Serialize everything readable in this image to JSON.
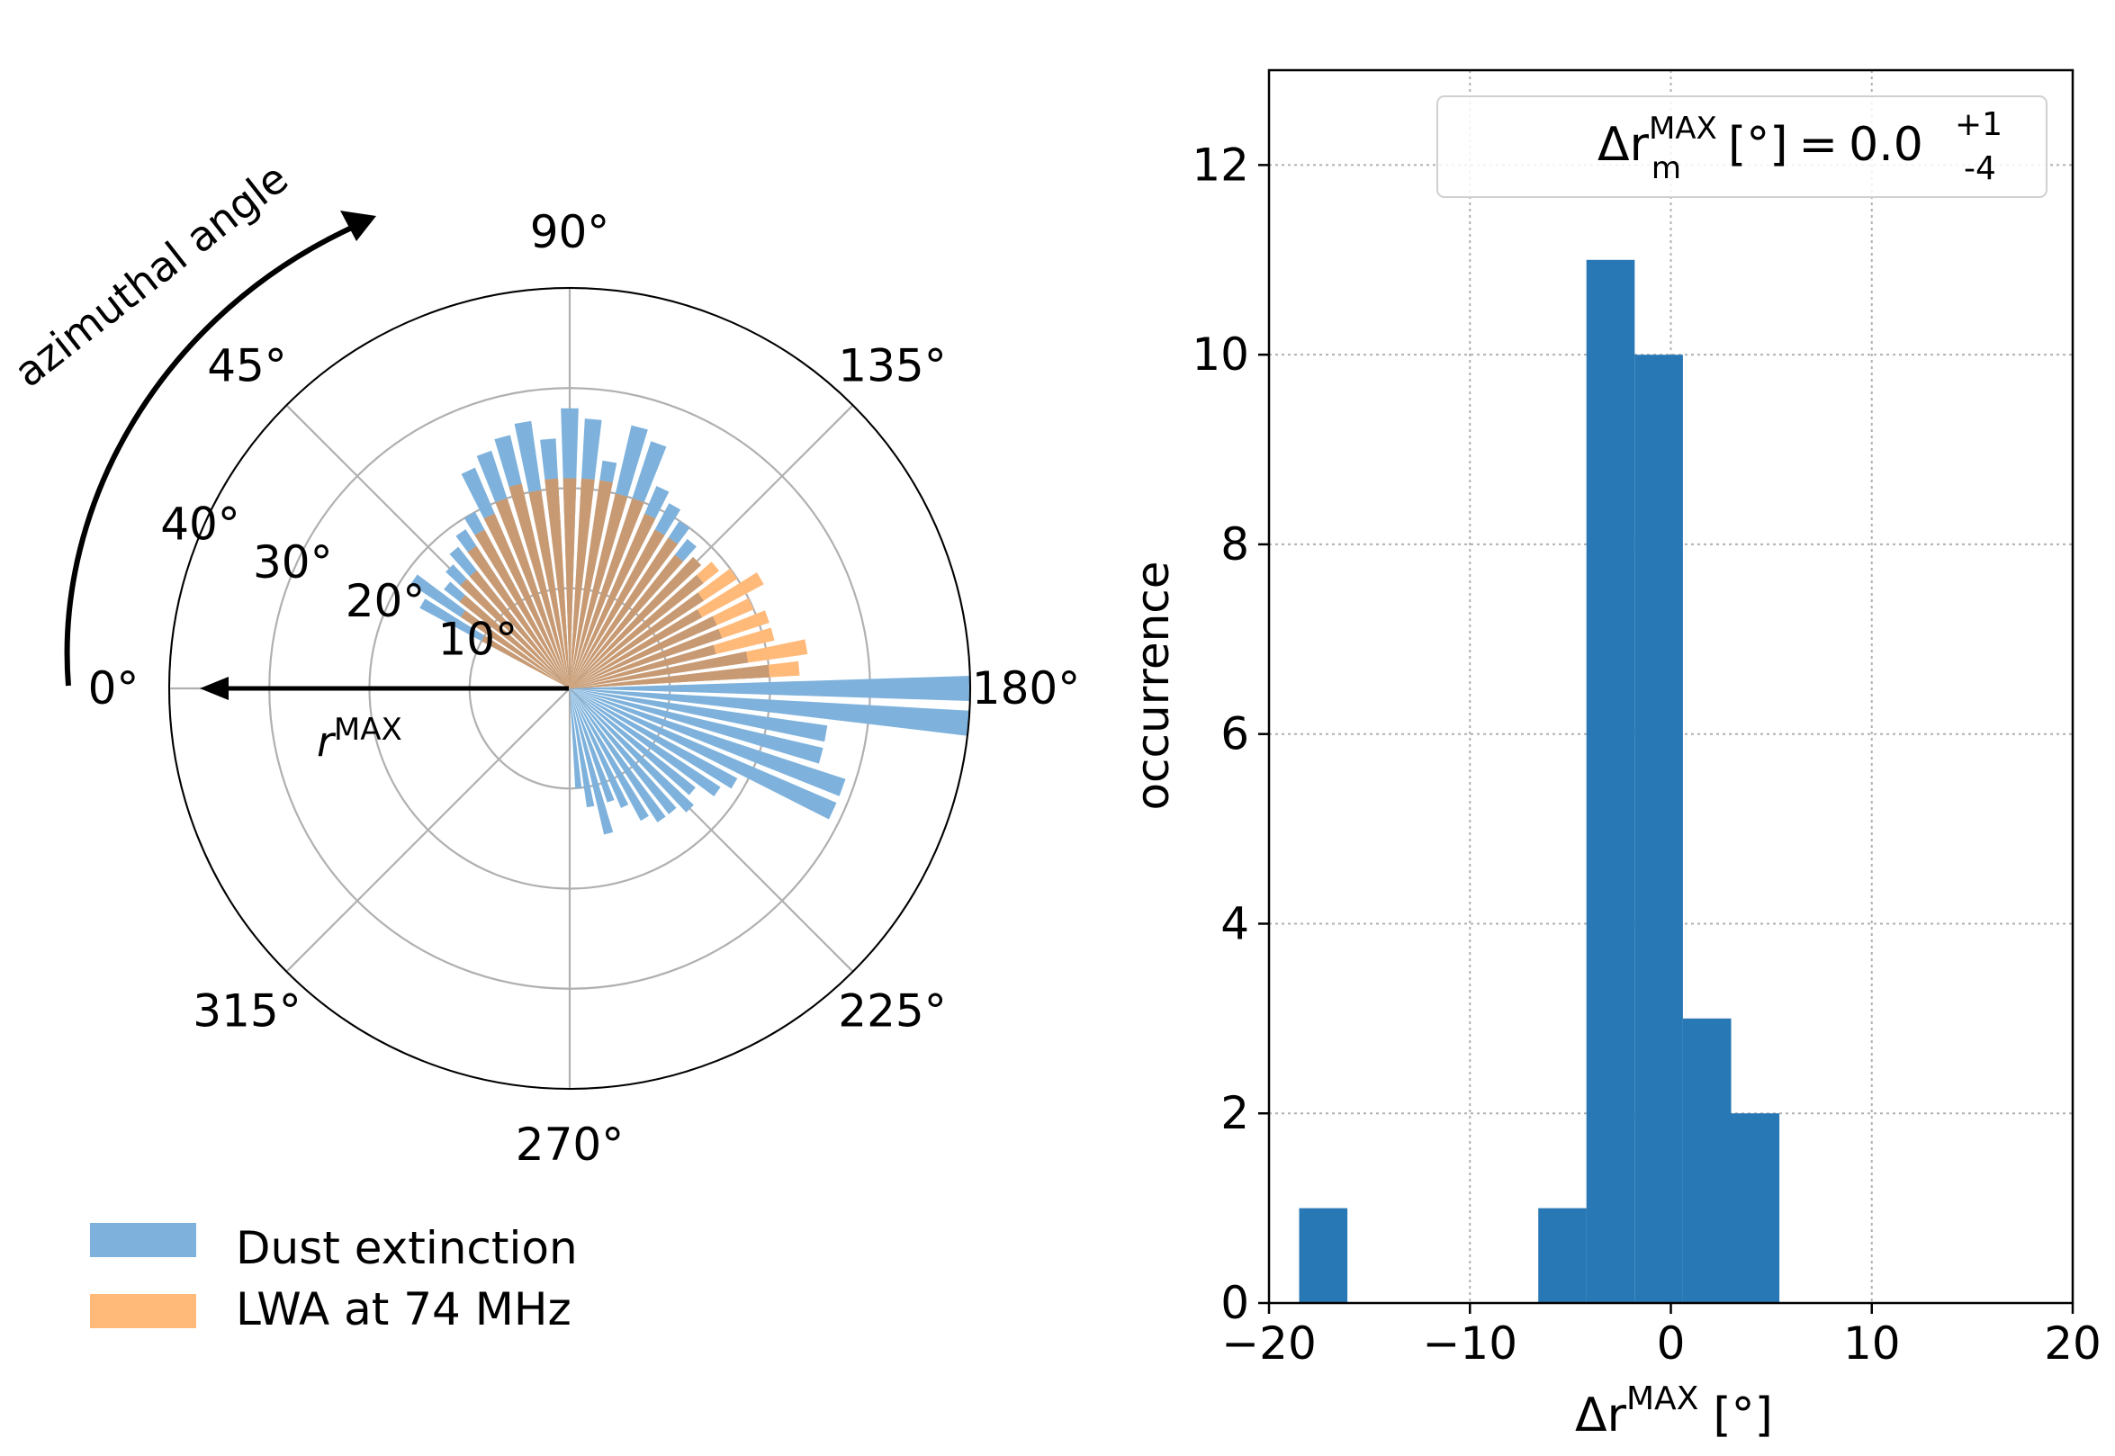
{
  "chart_data": [
    {
      "type": "polar-bar",
      "annotation": "azimuthal angle",
      "arrow_label": "r",
      "arrow_label_sup": "MAX",
      "angle_ticks": [
        "0°",
        "45°",
        "90°",
        "135°",
        "180°",
        "225°",
        "270°",
        "315°"
      ],
      "angle_tick_values": [
        0,
        45,
        90,
        135,
        180,
        225,
        270,
        315
      ],
      "radial_ticks": [
        "10°",
        "20°",
        "30°",
        "40°"
      ],
      "radial_tick_values": [
        10,
        20,
        30,
        40
      ],
      "rlim": [
        0,
        40
      ],
      "bin_width_deg": 5,
      "colors": {
        "dust": "#7eb2dc",
        "lwa": "#ffba7a",
        "overlap": "#c89a73"
      },
      "legend": [
        {
          "label": "Dust extinction",
          "color": "#7eb2dc"
        },
        {
          "label": "LWA at 74 MHz",
          "color": "#ffba7a"
        }
      ],
      "series": [
        {
          "name": "Dust extinction",
          "angles": [
            30,
            35,
            40,
            45,
            50,
            55,
            60,
            65,
            70,
            75,
            80,
            85,
            90,
            95,
            100,
            105,
            110,
            115,
            120,
            125,
            130,
            135,
            140,
            145,
            150,
            155,
            160,
            165,
            170,
            175,
            180,
            185,
            190,
            195,
            200,
            205,
            210,
            215,
            220,
            225,
            230,
            235,
            240,
            245,
            250,
            255,
            260,
            265,
            270
          ],
          "values": [
            17,
            19,
            16,
            17,
            18,
            19,
            20,
            24,
            25,
            26,
            27,
            25,
            28,
            27,
            23,
            27,
            26,
            22,
            21,
            20,
            19,
            18,
            17,
            16,
            15,
            16,
            16,
            15,
            18,
            20,
            40,
            40,
            26,
            26,
            29,
            29,
            19,
            18,
            16,
            17,
            16,
            16,
            15,
            13,
            12,
            15,
            12,
            10,
            0
          ]
        },
        {
          "name": "LWA at 74 MHz",
          "angles": [
            30,
            35,
            40,
            45,
            50,
            55,
            60,
            65,
            70,
            75,
            80,
            85,
            90,
            95,
            100,
            105,
            110,
            115,
            120,
            125,
            130,
            135,
            140,
            145,
            150,
            155,
            160,
            165,
            170,
            175,
            180
          ],
          "values": [
            10,
            13,
            14,
            15,
            15,
            17,
            18,
            19,
            20,
            21,
            20,
            21,
            21,
            21,
            21,
            20,
            20,
            19,
            18,
            18,
            17,
            18,
            19,
            20,
            22,
            20,
            21,
            21,
            24,
            23,
            0
          ]
        }
      ]
    },
    {
      "type": "bar",
      "xlabel": "Δr",
      "xlabel_sup": "MAX",
      "xlabel_unit": "[°]",
      "ylabel": "occurrence",
      "xlim": [
        -20,
        20
      ],
      "ylim": [
        0,
        13
      ],
      "xticks": [
        -20,
        -10,
        0,
        10,
        20
      ],
      "xtick_labels": [
        "−20",
        "−10",
        "0",
        "10",
        "20"
      ],
      "yticks": [
        0,
        2,
        4,
        6,
        8,
        10,
        12
      ],
      "ytick_labels": [
        "0",
        "2",
        "4",
        "6",
        "8",
        "10",
        "12"
      ],
      "grid": true,
      "color": "#2878b5",
      "bins": [
        {
          "x0": -18.5,
          "x1": -16.1,
          "count": 1
        },
        {
          "x0": -6.6,
          "x1": -4.2,
          "count": 1
        },
        {
          "x0": -4.2,
          "x1": -1.8,
          "count": 11
        },
        {
          "x0": -1.8,
          "x1": 0.6,
          "count": 10
        },
        {
          "x0": 0.6,
          "x1": 3.0,
          "count": 3
        },
        {
          "x0": 3.0,
          "x1": 5.4,
          "count": 2
        }
      ],
      "legend_box": {
        "prefix": "Δr",
        "sup": "MAX",
        "sub": "m",
        "unit": "[°]",
        "equals": "=",
        "value": "0.0",
        "err_plus": "+1",
        "err_minus": "-4",
        "placement": "top-right"
      }
    }
  ]
}
